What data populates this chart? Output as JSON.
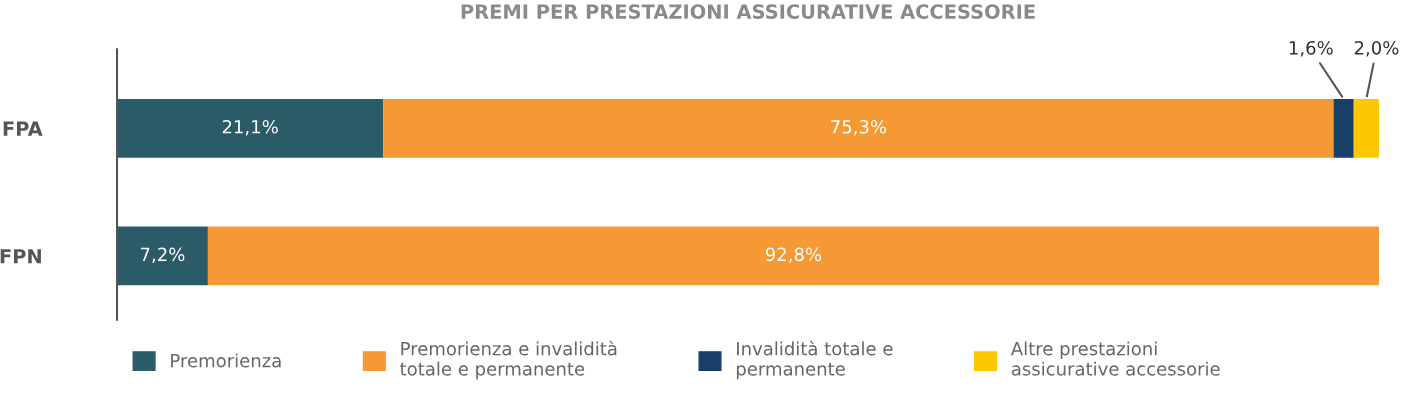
{
  "chart_data": {
    "type": "bar",
    "orientation": "horizontal",
    "stacked": true,
    "title": "PREMI PER PRESTAZIONI ASSICURATIVE ACCESSORIE",
    "categories": [
      "FPA",
      "FPN"
    ],
    "xlim": [
      0,
      100
    ],
    "tick_labels": "y",
    "legend": "bottom",
    "grid": false,
    "series": [
      {
        "name": "Premorienza",
        "color": "#2a5b66",
        "values": [
          21.1,
          7.2
        ],
        "value_labels": [
          "21,1%",
          "7,2%"
        ]
      },
      {
        "name": "Premorienza e invalidità\ntotale e permanente",
        "color": "#f59935",
        "values": [
          75.3,
          92.8
        ],
        "value_labels": [
          "75,3%",
          "92,8%"
        ]
      },
      {
        "name": "Invalidità totale e\npermanente",
        "color": "#173f68",
        "values": [
          1.6,
          null
        ],
        "value_labels": [
          "1,6%",
          null
        ]
      },
      {
        "name": "Altre prestazioni\nassicurative accessorie",
        "color": "#fdc800",
        "values": [
          2.0,
          null
        ],
        "value_labels": [
          "2,0%",
          null
        ]
      }
    ]
  }
}
